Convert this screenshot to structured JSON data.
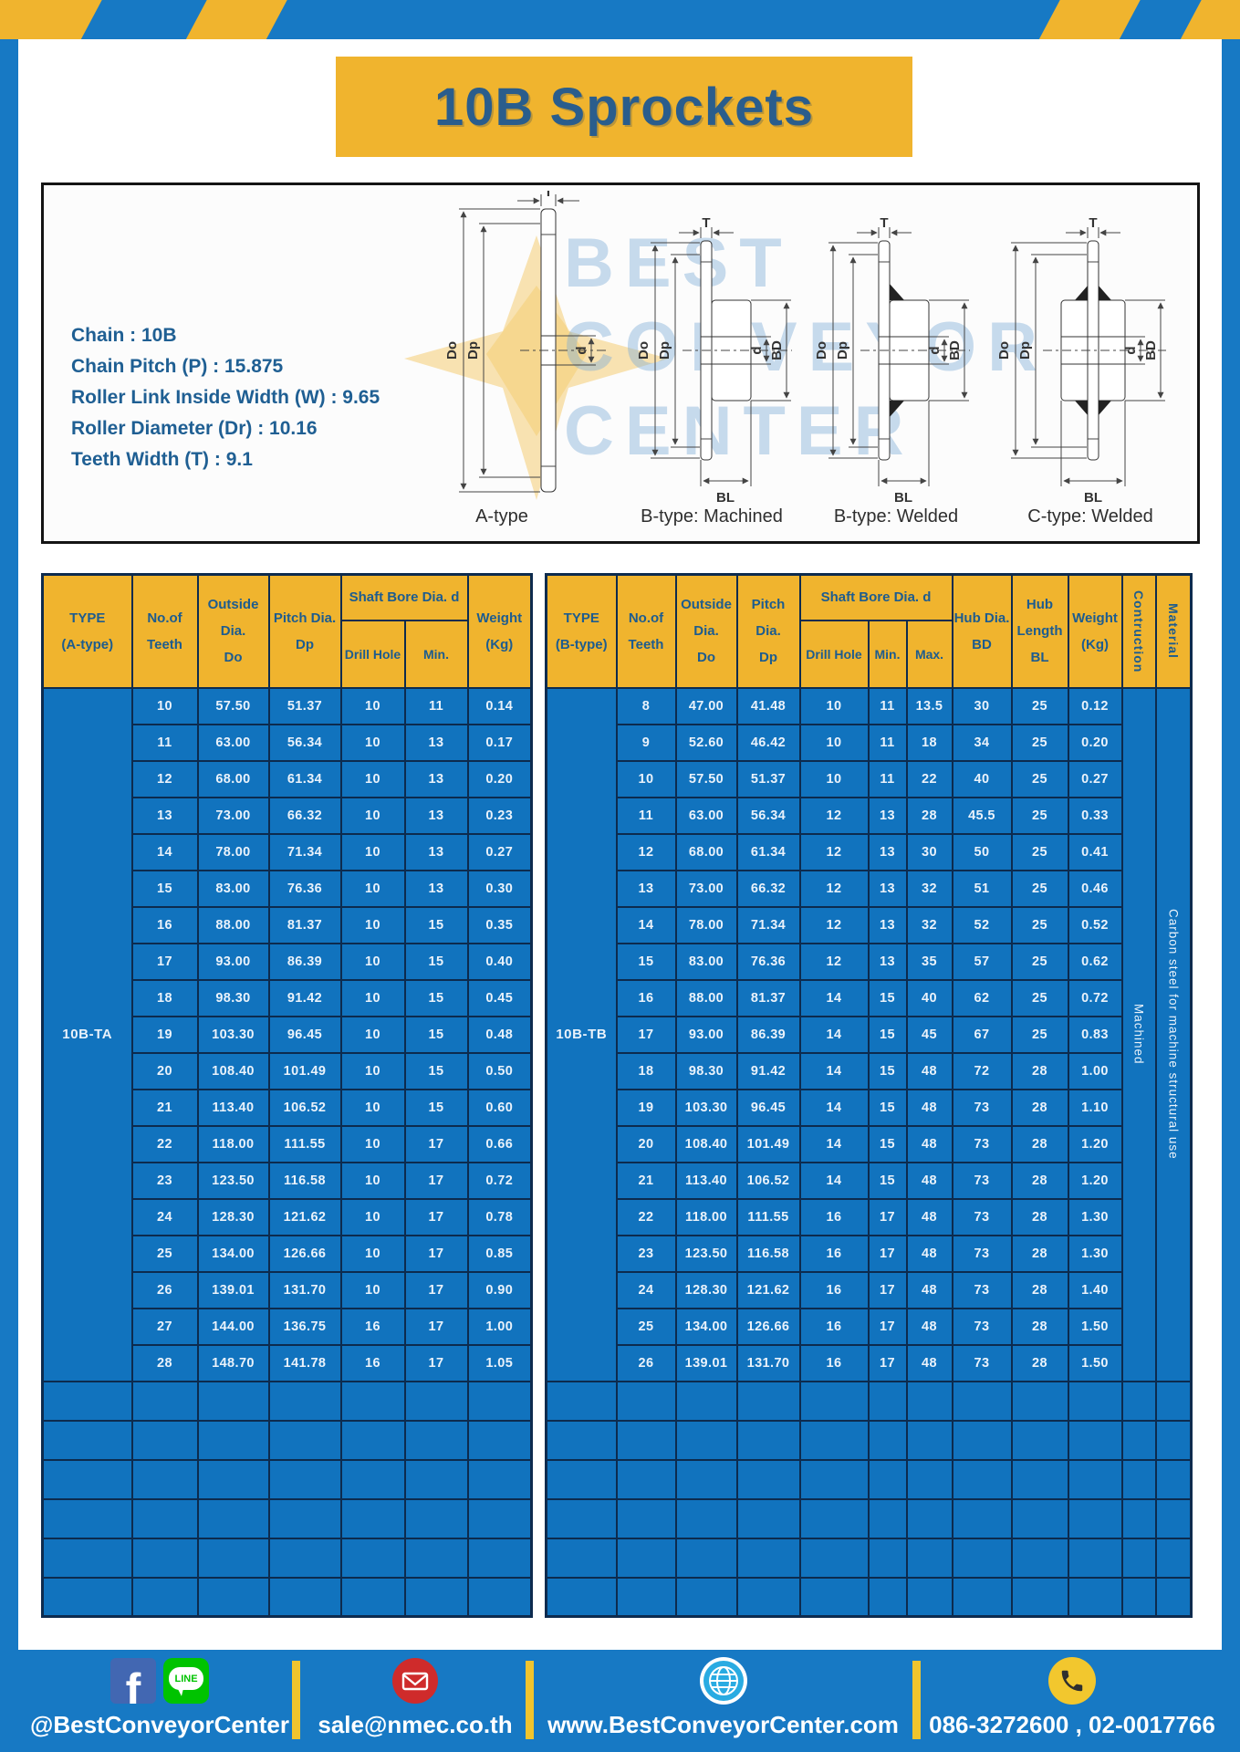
{
  "title": "10B Sprockets",
  "specs": [
    "Chain  :  10B",
    "Chain Pitch (P)  :  15.875",
    "Roller Link Inside Width (W) : 9.65",
    "Roller Diameter (Dr)  : 10.16",
    "Teeth Width (T)  :  9.1"
  ],
  "diagram": {
    "watermark_lines": [
      "BEST",
      "CONVEYOR",
      "CENTER"
    ],
    "dims": {
      "t": "T",
      "do_": "Do",
      "dp": "Dp",
      "d": "d",
      "bd": "BD",
      "bl": "BL"
    },
    "labels": [
      "A-type",
      "B-type: Machined",
      "B-type: Welded",
      "C-type: Welded"
    ]
  },
  "table_a": {
    "headers": {
      "type1": "TYPE",
      "type2": "(A-type)",
      "teeth1": "No.of",
      "teeth2": "Teeth",
      "outside1": "Outside",
      "outside2": "Dia.",
      "outside3": "Do",
      "pitch1": "Pitch Dia.",
      "pitch2": "Dp",
      "shaft": "Shaft Bore Dia. d",
      "drill": "Drill Hole",
      "min": "Min.",
      "weight1": "Weight",
      "weight2": "(Kg)"
    },
    "type_value": "10B-TA",
    "empty_rows": 6,
    "rows": [
      [
        "10",
        "57.50",
        "51.37",
        "10",
        "11",
        "0.14"
      ],
      [
        "11",
        "63.00",
        "56.34",
        "10",
        "13",
        "0.17"
      ],
      [
        "12",
        "68.00",
        "61.34",
        "10",
        "13",
        "0.20"
      ],
      [
        "13",
        "73.00",
        "66.32",
        "10",
        "13",
        "0.23"
      ],
      [
        "14",
        "78.00",
        "71.34",
        "10",
        "13",
        "0.27"
      ],
      [
        "15",
        "83.00",
        "76.36",
        "10",
        "13",
        "0.30"
      ],
      [
        "16",
        "88.00",
        "81.37",
        "10",
        "15",
        "0.35"
      ],
      [
        "17",
        "93.00",
        "86.39",
        "10",
        "15",
        "0.40"
      ],
      [
        "18",
        "98.30",
        "91.42",
        "10",
        "15",
        "0.45"
      ],
      [
        "19",
        "103.30",
        "96.45",
        "10",
        "15",
        "0.48"
      ],
      [
        "20",
        "108.40",
        "101.49",
        "10",
        "15",
        "0.50"
      ],
      [
        "21",
        "113.40",
        "106.52",
        "10",
        "15",
        "0.60"
      ],
      [
        "22",
        "118.00",
        "111.55",
        "10",
        "17",
        "0.66"
      ],
      [
        "23",
        "123.50",
        "116.58",
        "10",
        "17",
        "0.72"
      ],
      [
        "24",
        "128.30",
        "121.62",
        "10",
        "17",
        "0.78"
      ],
      [
        "25",
        "134.00",
        "126.66",
        "10",
        "17",
        "0.85"
      ],
      [
        "26",
        "139.01",
        "131.70",
        "10",
        "17",
        "0.90"
      ],
      [
        "27",
        "144.00",
        "136.75",
        "16",
        "17",
        "1.00"
      ],
      [
        "28",
        "148.70",
        "141.78",
        "16",
        "17",
        "1.05"
      ]
    ]
  },
  "table_b": {
    "headers": {
      "type1": "TYPE",
      "type2": "(B-type)",
      "teeth1": "No.of",
      "teeth2": "Teeth",
      "outside1": "Outside",
      "outside2": "Dia.",
      "outside3": "Do",
      "pitch1": "Pitch Dia.",
      "pitch2": "Dp",
      "shaft": "Shaft Bore Dia. d",
      "drill": "Drill Hole",
      "min": "Min.",
      "max": "Max.",
      "hub1": "Hub Dia.",
      "hub2": "BD",
      "hublen1": "Hub",
      "hublen2": "Length",
      "hublen3": "BL",
      "weight1": "Weight",
      "weight2": "(Kg)",
      "construction": "Contruction",
      "material": "Material"
    },
    "type_value": "10B-TB",
    "construction_value": "Machined",
    "material_value": "Carbon steel  for machine structural use",
    "empty_rows": 6,
    "rows": [
      [
        "8",
        "47.00",
        "41.48",
        "10",
        "11",
        "13.5",
        "30",
        "25",
        "0.12"
      ],
      [
        "9",
        "52.60",
        "46.42",
        "10",
        "11",
        "18",
        "34",
        "25",
        "0.20"
      ],
      [
        "10",
        "57.50",
        "51.37",
        "10",
        "11",
        "22",
        "40",
        "25",
        "0.27"
      ],
      [
        "11",
        "63.00",
        "56.34",
        "12",
        "13",
        "28",
        "45.5",
        "25",
        "0.33"
      ],
      [
        "12",
        "68.00",
        "61.34",
        "12",
        "13",
        "30",
        "50",
        "25",
        "0.41"
      ],
      [
        "13",
        "73.00",
        "66.32",
        "12",
        "13",
        "32",
        "51",
        "25",
        "0.46"
      ],
      [
        "14",
        "78.00",
        "71.34",
        "12",
        "13",
        "32",
        "52",
        "25",
        "0.52"
      ],
      [
        "15",
        "83.00",
        "76.36",
        "12",
        "13",
        "35",
        "57",
        "25",
        "0.62"
      ],
      [
        "16",
        "88.00",
        "81.37",
        "14",
        "15",
        "40",
        "62",
        "25",
        "0.72"
      ],
      [
        "17",
        "93.00",
        "86.39",
        "14",
        "15",
        "45",
        "67",
        "25",
        "0.83"
      ],
      [
        "18",
        "98.30",
        "91.42",
        "14",
        "15",
        "48",
        "72",
        "28",
        "1.00"
      ],
      [
        "19",
        "103.30",
        "96.45",
        "14",
        "15",
        "48",
        "73",
        "28",
        "1.10"
      ],
      [
        "20",
        "108.40",
        "101.49",
        "14",
        "15",
        "48",
        "73",
        "28",
        "1.20"
      ],
      [
        "21",
        "113.40",
        "106.52",
        "14",
        "15",
        "48",
        "73",
        "28",
        "1.20"
      ],
      [
        "22",
        "118.00",
        "111.55",
        "16",
        "17",
        "48",
        "73",
        "28",
        "1.30"
      ],
      [
        "23",
        "123.50",
        "116.58",
        "16",
        "17",
        "48",
        "73",
        "28",
        "1.30"
      ],
      [
        "24",
        "128.30",
        "121.62",
        "16",
        "17",
        "48",
        "73",
        "28",
        "1.40"
      ],
      [
        "25",
        "134.00",
        "126.66",
        "16",
        "17",
        "48",
        "73",
        "28",
        "1.50"
      ],
      [
        "26",
        "139.01",
        "131.70",
        "16",
        "17",
        "48",
        "73",
        "28",
        "1.50"
      ]
    ]
  },
  "footer": {
    "facebook_glyph": "f",
    "line_badge": "LINE",
    "social_handle": "@BestConveyorCenter",
    "email": "sale@nmec.co.th",
    "website": "www.BestConveyorCenter.com",
    "phones": "086-3272600 , 02-0017766"
  },
  "colors": {
    "frame_blue": "#1779c4",
    "cell_blue": "#1173be",
    "accent_yellow": "#f0b42e",
    "header_text_blue": "#1d5c8f",
    "grid_line": "#0d2b4e"
  }
}
